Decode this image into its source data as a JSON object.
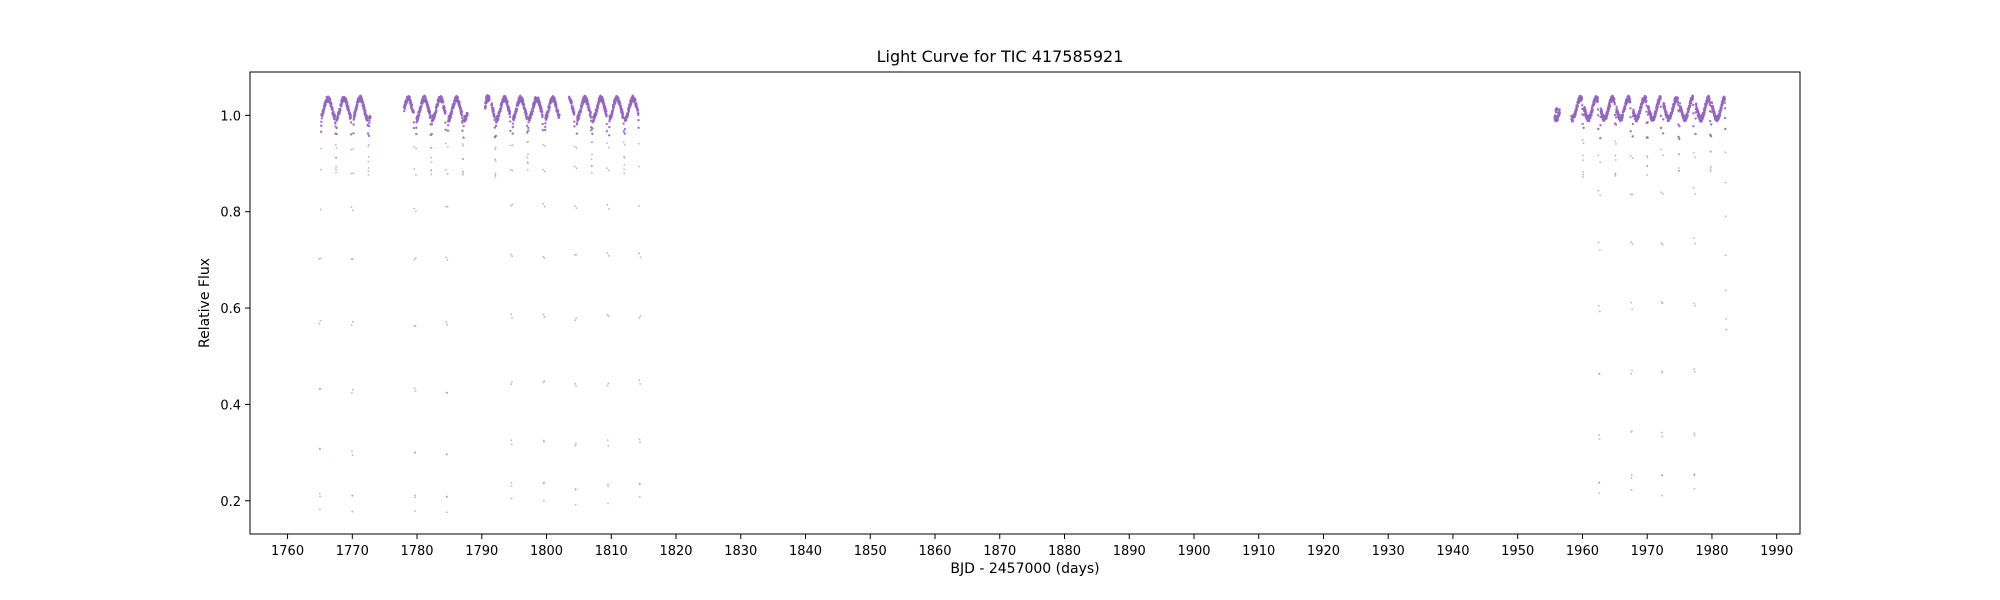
{
  "chart_data": {
    "type": "scatter",
    "title": "Light Curve for TIC 417585921",
    "xlabel": "BJD - 2457000 (days)",
    "ylabel": "Relative Flux",
    "xlim": [
      1754.2,
      1993.6
    ],
    "ylim": [
      0.131,
      1.09
    ],
    "x_ticks": [
      1760,
      1770,
      1780,
      1790,
      1800,
      1810,
      1820,
      1830,
      1840,
      1850,
      1860,
      1870,
      1880,
      1890,
      1900,
      1910,
      1920,
      1930,
      1940,
      1950,
      1960,
      1970,
      1980,
      1990
    ],
    "x_tick_labels": [
      "1760",
      "1770",
      "1780",
      "1790",
      "1800",
      "1810",
      "1820",
      "1830",
      "1840",
      "1850",
      "1860",
      "1870",
      "1880",
      "1890",
      "1900",
      "1910",
      "1920",
      "1930",
      "1940",
      "1950",
      "1960",
      "1970",
      "1980",
      "1990"
    ],
    "y_ticks": [
      0.2,
      0.4,
      0.6,
      0.8,
      1.0
    ],
    "y_tick_labels": [
      "0.2",
      "0.4",
      "0.6",
      "0.8",
      "1.0"
    ],
    "grid": false,
    "legend": "none",
    "marker_color": "#9467bd",
    "segments": [
      {
        "start": 1764.9,
        "end": 1772.8
      },
      {
        "start": 1778.0,
        "end": 1787.8
      },
      {
        "start": 1790.5,
        "end": 1791.2
      },
      {
        "start": 1791.5,
        "end": 1802.0
      },
      {
        "start": 1803.5,
        "end": 1814.5
      },
      {
        "start": 1955.7,
        "end": 1956.5
      },
      {
        "start": 1958.3,
        "end": 1982.2
      }
    ],
    "primary_eclipses": [
      {
        "x": 1765.0,
        "min_flux": 0.18
      },
      {
        "x": 1770.0,
        "min_flux": 0.175
      },
      {
        "x": 1779.7,
        "min_flux": 0.175
      },
      {
        "x": 1784.6,
        "min_flux": 0.175
      },
      {
        "x": 1794.6,
        "min_flux": 0.2
      },
      {
        "x": 1799.6,
        "min_flux": 0.205
      },
      {
        "x": 1804.5,
        "min_flux": 0.195
      },
      {
        "x": 1809.5,
        "min_flux": 0.2
      },
      {
        "x": 1814.4,
        "min_flux": 0.205
      },
      {
        "x": 1962.6,
        "min_flux": 0.21
      },
      {
        "x": 1967.6,
        "min_flux": 0.22
      },
      {
        "x": 1972.3,
        "min_flux": 0.215
      },
      {
        "x": 1977.3,
        "min_flux": 0.22
      },
      {
        "x": 1982.2,
        "min_flux": 0.56
      }
    ],
    "secondary_eclipses": [
      {
        "x": 1767.5,
        "min_flux": 0.88
      },
      {
        "x": 1772.5,
        "min_flux": 0.88
      },
      {
        "x": 1782.2,
        "min_flux": 0.875
      },
      {
        "x": 1787.1,
        "min_flux": 0.875
      },
      {
        "x": 1792.1,
        "min_flux": 0.87
      },
      {
        "x": 1797.1,
        "min_flux": 0.89
      },
      {
        "x": 1807.0,
        "min_flux": 0.885
      },
      {
        "x": 1812.0,
        "min_flux": 0.885
      },
      {
        "x": 1960.1,
        "min_flux": 0.87
      },
      {
        "x": 1965.1,
        "min_flux": 0.87
      },
      {
        "x": 1970.0,
        "min_flux": 0.88
      },
      {
        "x": 1974.9,
        "min_flux": 0.88
      },
      {
        "x": 1979.8,
        "min_flux": 0.88
      }
    ],
    "out_of_eclipse_flux": [
      0.97,
      1.035
    ],
    "isolated_points": [
      {
        "x": 1790.8,
        "flux": 1.04
      },
      {
        "x": 1956.0,
        "flux": 1.01
      }
    ]
  }
}
